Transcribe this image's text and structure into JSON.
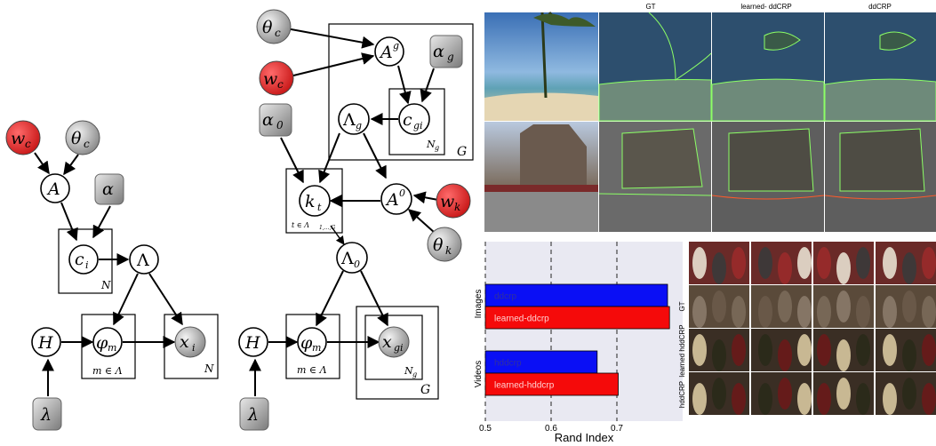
{
  "graphical_model_left": {
    "nodes": {
      "w_c": "w",
      "w_c_sub": "c",
      "theta_c": "θ",
      "theta_c_sub": "c",
      "A": "A",
      "alpha": "α",
      "c_i": "c",
      "c_i_sub": "i",
      "Lambda": "Λ",
      "H": "H",
      "phi_m": "φ",
      "phi_m_sub": "m",
      "x_i": "x",
      "x_i_sub": "i",
      "lambda": "λ"
    },
    "plates": {
      "plate_N1": "N",
      "plate_m": "m ∈ Λ",
      "plate_N2": "N"
    }
  },
  "graphical_model_right": {
    "nodes": {
      "theta_c": "θ",
      "theta_c_sub": "c",
      "w_c": "w",
      "w_c_sub": "c",
      "A_g": "A",
      "A_g_sup": "g",
      "alpha_g": "α",
      "alpha_g_sub": "g",
      "alpha_0": "α",
      "alpha_0_sub": "0",
      "Lambda_g": "Λ",
      "Lambda_g_sub": "g",
      "c_gi": "c",
      "c_gi_sub": "gi",
      "k_t": "k",
      "k_t_sub": "t",
      "A_0": "A",
      "A_0_sup": "0",
      "w_k": "w",
      "w_k_sub": "k",
      "theta_k": "θ",
      "theta_k_sub": "k",
      "Lambda_0": "Λ",
      "Lambda_0_sub": "0",
      "H": "H",
      "phi_m": "φ",
      "phi_m_sub": "m",
      "x_gi": "x",
      "x_gi_sub": "gi",
      "lambda": "λ"
    },
    "plates": {
      "plate_Ng": "N",
      "plate_Ng_sub": "g",
      "plate_G_top": "G",
      "plate_t": "t ∈ Λ",
      "plate_t_sub": "1,...,G",
      "plate_m": "m ∈ Λ",
      "plate_Ng2": "N",
      "plate_Ng2_sub": "g",
      "plate_G_bottom": "G"
    }
  },
  "image_grid": {
    "column_headers": [
      "GT",
      "learned- ddCRP",
      "ddCRP"
    ]
  },
  "video_grid": {
    "row_labels": [
      "GT",
      "learned hddCRP",
      "hddCRP"
    ]
  },
  "chart_data": {
    "type": "bar",
    "orientation": "horizontal",
    "xlabel": "Rand Index",
    "xlim": [
      0.5,
      0.8
    ],
    "xticks": [
      0.5,
      0.6,
      0.7
    ],
    "grid": "vertical dashed",
    "groups": [
      {
        "label": "Images",
        "bars": [
          {
            "name": "ddcrp",
            "value": 0.777,
            "color": "#0a0ff5"
          },
          {
            "name": "learned-ddcrp",
            "value": 0.78,
            "color": "#f50a0a"
          }
        ]
      },
      {
        "label": "Videos",
        "bars": [
          {
            "name": "hddcrp",
            "value": 0.67,
            "color": "#0a0ff5"
          },
          {
            "name": "learned-hddcrp",
            "value": 0.702,
            "color": "#f50a0a"
          }
        ]
      }
    ]
  }
}
